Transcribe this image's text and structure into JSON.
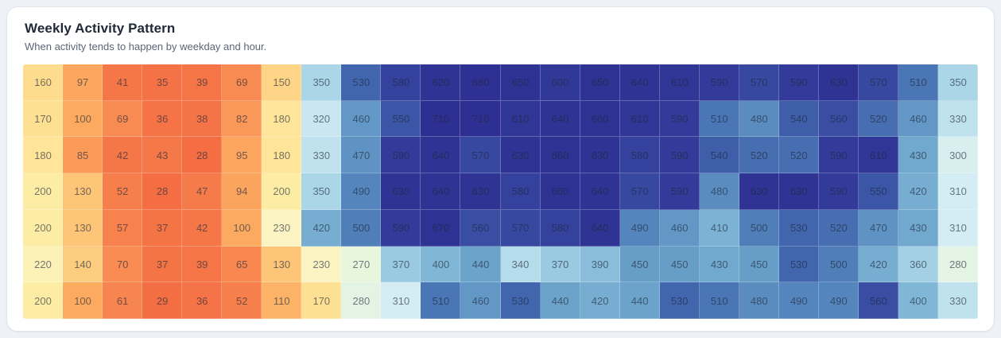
{
  "card": {
    "title": "Weekly Activity Pattern",
    "subtitle": "When activity tends to happen by weekday and hour."
  },
  "colors": {
    "page_bg": "#eef1f6",
    "card_bg": "#ffffff",
    "card_border": "#dfe5ed",
    "title_text": "#1f2937",
    "subtitle_text": "#5b6675",
    "cell_text": "rgba(30,41,59,0.62)",
    "cell_grid_line": "rgba(255,255,255,0.25)"
  },
  "chart_data": {
    "type": "heatmap",
    "rows": 7,
    "cols": 24,
    "title": "Weekly Activity Pattern",
    "subtitle": "When activity tends to happen by weekday and hour.",
    "axis_labels": "none shown (no row or column tick labels visible)",
    "legend": "none",
    "cell_labels": "each cell shows its raw integer value",
    "value_domain": [
      28,
      710
    ],
    "matrix": [
      [
        160,
        97,
        41,
        35,
        39,
        69,
        150,
        350,
        530,
        580,
        620,
        680,
        650,
        600,
        650,
        640,
        610,
        590,
        570,
        590,
        630,
        570,
        510,
        350
      ],
      [
        170,
        100,
        69,
        36,
        38,
        82,
        180,
        320,
        460,
        550,
        710,
        710,
        610,
        640,
        660,
        610,
        590,
        510,
        480,
        540,
        560,
        520,
        460,
        330
      ],
      [
        180,
        85,
        42,
        43,
        28,
        95,
        180,
        330,
        470,
        590,
        640,
        570,
        630,
        660,
        630,
        580,
        590,
        540,
        520,
        520,
        590,
        610,
        430,
        300
      ],
      [
        200,
        130,
        52,
        28,
        47,
        94,
        200,
        350,
        490,
        630,
        640,
        630,
        580,
        660,
        640,
        570,
        590,
        480,
        630,
        630,
        590,
        550,
        420,
        310
      ],
      [
        200,
        130,
        57,
        37,
        42,
        100,
        230,
        420,
        500,
        590,
        670,
        560,
        570,
        580,
        640,
        490,
        460,
        410,
        500,
        530,
        520,
        470,
        430,
        310
      ],
      [
        220,
        140,
        70,
        37,
        39,
        65,
        130,
        230,
        270,
        370,
        400,
        440,
        340,
        370,
        390,
        450,
        450,
        430,
        450,
        530,
        500,
        420,
        360,
        280
      ],
      [
        200,
        100,
        61,
        29,
        36,
        52,
        110,
        170,
        280,
        310,
        510,
        460,
        530,
        440,
        420,
        440,
        530,
        510,
        480,
        490,
        490,
        560,
        400,
        330
      ]
    ],
    "color_scale": {
      "style": "red-yellow-blue diverging (low = orange, mid = pale yellow/cyan, high = dark indigo)",
      "stops": [
        [
          28,
          "#f46d43"
        ],
        [
          70,
          "#f88c52"
        ],
        [
          100,
          "#fbaa60"
        ],
        [
          130,
          "#fdc578"
        ],
        [
          160,
          "#fedc8d"
        ],
        [
          200,
          "#fdeda4"
        ],
        [
          230,
          "#fbf4c2"
        ],
        [
          270,
          "#e8f6de"
        ],
        [
          310,
          "#d4edf4"
        ],
        [
          350,
          "#abd6e8"
        ],
        [
          400,
          "#81b7d6"
        ],
        [
          440,
          "#6ba3cb"
        ],
        [
          470,
          "#5f93c3"
        ],
        [
          500,
          "#4f7eb8"
        ],
        [
          530,
          "#4166ae"
        ],
        [
          560,
          "#394ea3"
        ],
        [
          590,
          "#323b9a"
        ],
        [
          620,
          "#2f3494"
        ],
        [
          710,
          "#2d3092"
        ]
      ]
    }
  }
}
